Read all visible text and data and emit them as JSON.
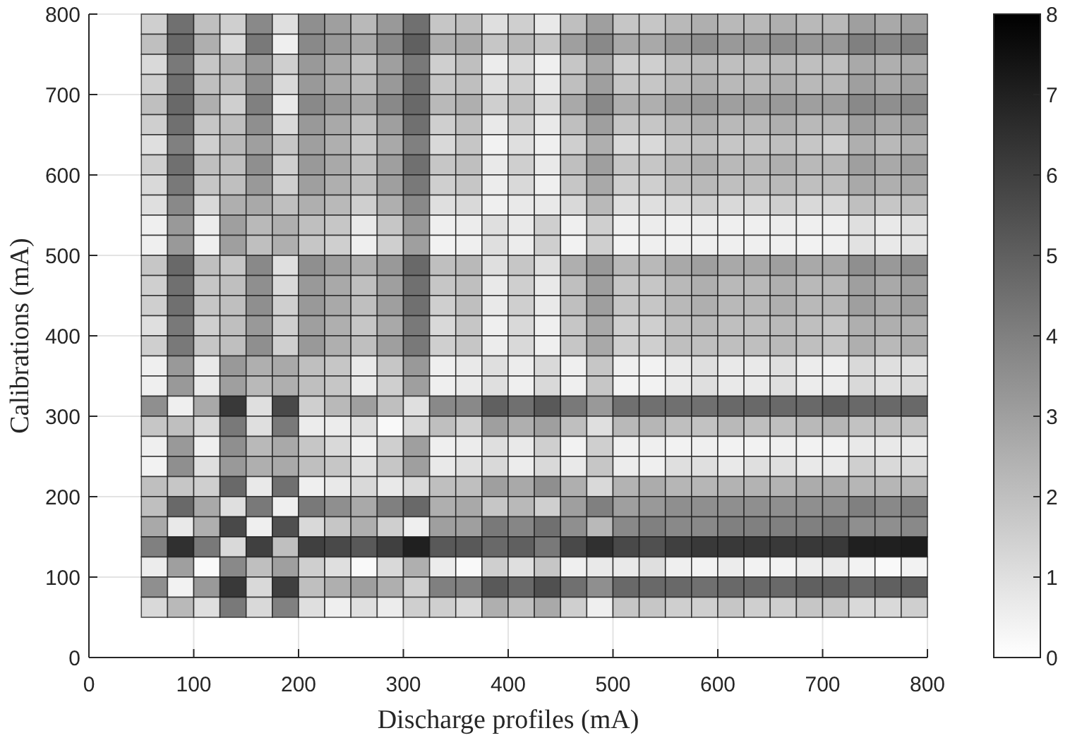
{
  "chart_data": {
    "type": "heatmap",
    "xlabel": "Discharge profiles (mA)",
    "ylabel": "Calibrations (mA)",
    "x": [
      62.5,
      87.5,
      112.5,
      137.5,
      162.5,
      187.5,
      212.5,
      237.5,
      262.5,
      287.5,
      312.5,
      337.5,
      362.5,
      387.5,
      412.5,
      437.5,
      462.5,
      487.5,
      512.5,
      537.5,
      562.5,
      587.5,
      612.5,
      637.5,
      662.5,
      687.5,
      712.5,
      737.5,
      762.5,
      787.5
    ],
    "y": [
      787.5,
      762.5,
      737.5,
      712.5,
      687.5,
      662.5,
      637.5,
      612.5,
      587.5,
      562.5,
      537.5,
      512.5,
      487.5,
      462.5,
      437.5,
      412.5,
      387.5,
      362.5,
      337.5,
      312.5,
      287.5,
      262.5,
      237.5,
      212.5,
      187.5,
      162.5,
      137.5,
      112.5,
      87.5,
      62.5
    ],
    "cells": [
      [
        1.5,
        4.5,
        2,
        1.5,
        3.7,
        1,
        3.5,
        3,
        2.2,
        3.2,
        4.5,
        1.8,
        2,
        1,
        1.5,
        0.7,
        2,
        3,
        1.8,
        1.8,
        2.2,
        2.5,
        2.2,
        2.2,
        2.5,
        2.2,
        2.2,
        3,
        2.7,
        3
      ],
      [
        2,
        4.7,
        2.5,
        1.2,
        4.2,
        0.5,
        3.7,
        3.2,
        2.7,
        3.7,
        5,
        2.5,
        2.7,
        1.8,
        2.2,
        1.8,
        3,
        3.7,
        2.7,
        2.7,
        3.2,
        3.5,
        3.2,
        3.2,
        3.5,
        3.2,
        3.2,
        4,
        3.7,
        4
      ],
      [
        1.2,
        4.2,
        1.8,
        2.2,
        3.2,
        1.5,
        3.2,
        2.7,
        2,
        3,
        4.2,
        1.5,
        2,
        0.6,
        1.2,
        0.5,
        1.8,
        2.7,
        1.5,
        1.5,
        2,
        2.2,
        2,
        2,
        2.2,
        2,
        2,
        2.7,
        2.5,
        2.7
      ],
      [
        1.5,
        4.5,
        2,
        2,
        3.5,
        1.2,
        3.2,
        2.7,
        2.2,
        3.2,
        4.5,
        1.8,
        2,
        1,
        1.5,
        0.7,
        2,
        3,
        1.8,
        1.8,
        2.2,
        2.5,
        2.2,
        2.2,
        2.5,
        2.2,
        2.2,
        3,
        2.7,
        3
      ],
      [
        2,
        4.7,
        2.5,
        1.5,
        4,
        0.7,
        3.7,
        3.2,
        2.7,
        3.7,
        4.7,
        2.2,
        2.5,
        1.5,
        2,
        1.2,
        2.7,
        3.7,
        2.5,
        2.5,
        3,
        3.2,
        3,
        3,
        3.2,
        3,
        3,
        3.7,
        3.5,
        3.7
      ],
      [
        1.5,
        4.5,
        1.8,
        2,
        3.5,
        1.2,
        3.2,
        2.7,
        2,
        3,
        4.5,
        1.5,
        2,
        0.7,
        1.5,
        0.7,
        2,
        3,
        1.8,
        1.8,
        2.2,
        2.5,
        2.2,
        2.2,
        2.5,
        2.2,
        2.2,
        3,
        2.7,
        3
      ],
      [
        1,
        4,
        1.5,
        2.2,
        3,
        1.8,
        3,
        2.5,
        1.8,
        2.7,
        4,
        1.2,
        1.8,
        0.4,
        1,
        0.5,
        1.5,
        2.5,
        1.2,
        1.2,
        1.8,
        2,
        1.8,
        1.8,
        2,
        1.8,
        1.5,
        2.5,
        2.2,
        2.5
      ],
      [
        1.5,
        4.5,
        2,
        2,
        3.5,
        1.5,
        3.2,
        2.7,
        2,
        3,
        4.5,
        1.8,
        2,
        0.7,
        1.5,
        0.7,
        2,
        3,
        1.8,
        1.8,
        2.2,
        2.5,
        2.2,
        2.2,
        2.5,
        2.2,
        2.2,
        3,
        2.7,
        3
      ],
      [
        1.2,
        4.2,
        1.8,
        2,
        3.2,
        1.5,
        3,
        2.5,
        2,
        3,
        4.2,
        1.5,
        1.8,
        0.6,
        1.2,
        0.5,
        1.8,
        2.7,
        1.5,
        1.5,
        2,
        2.2,
        2,
        2,
        2.2,
        2,
        2,
        2.7,
        2.5,
        2.7
      ],
      [
        1,
        3.7,
        1.2,
        2.5,
        2.7,
        2,
        2.5,
        2.2,
        1.5,
        2.5,
        3.7,
        1,
        1.2,
        0.5,
        0.7,
        0.7,
        1.2,
        2.2,
        1,
        1,
        1.2,
        1.5,
        1.2,
        1.2,
        1.5,
        1.2,
        1.2,
        2,
        1.8,
        2
      ],
      [
        0.5,
        3.2,
        0.6,
        3,
        2.2,
        2.5,
        2,
        1.8,
        0.7,
        1.8,
        3.2,
        0.5,
        0.6,
        1,
        0.7,
        1.5,
        0.5,
        1.5,
        0.5,
        0.6,
        0.5,
        0.6,
        0.5,
        0.5,
        0.6,
        0.5,
        0.5,
        1,
        0.7,
        1
      ],
      [
        0.5,
        3.2,
        0.5,
        3,
        2,
        2.5,
        1.8,
        1.5,
        0.5,
        1.5,
        3,
        0.4,
        0.5,
        1,
        0.6,
        1.5,
        0.4,
        1.5,
        0.4,
        0.5,
        0.5,
        0.5,
        0.5,
        0.5,
        0.5,
        0.4,
        0.5,
        0.9,
        0.7,
        0.9
      ],
      [
        1.8,
        4.7,
        2,
        1.8,
        3.7,
        1,
        3.5,
        3,
        2.5,
        3.2,
        4.7,
        2,
        2.2,
        1,
        1.8,
        1,
        2.5,
        3.2,
        2.2,
        2.2,
        2.7,
        3,
        2.7,
        2.7,
        3,
        2.7,
        2.7,
        3.5,
        3.2,
        3.5
      ],
      [
        1.5,
        4.5,
        1.8,
        2,
        3.5,
        1.2,
        3.2,
        2.7,
        2,
        3,
        4.5,
        1.8,
        2,
        0.7,
        1.5,
        0.7,
        2,
        3,
        1.8,
        1.8,
        2.2,
        2.5,
        2.2,
        2.2,
        2.5,
        2.2,
        2.2,
        3,
        2.7,
        3
      ],
      [
        1.5,
        4.5,
        1.8,
        2,
        3.5,
        1.5,
        3.2,
        2.7,
        2,
        3,
        4.5,
        1.5,
        2,
        0.7,
        1.5,
        0.7,
        2,
        3,
        1.8,
        1.8,
        2.2,
        2.5,
        2.2,
        2.2,
        2.5,
        2.2,
        2.2,
        3,
        2.7,
        3
      ],
      [
        1,
        4.2,
        1.5,
        2,
        3.2,
        1.5,
        3,
        2.5,
        1.8,
        2.7,
        4.2,
        1.2,
        1.8,
        0.5,
        1.2,
        0.5,
        1.8,
        2.7,
        1.5,
        1.5,
        2,
        2.2,
        2,
        2,
        2.2,
        2,
        1.8,
        2.5,
        2.5,
        2.5
      ],
      [
        1.5,
        4.2,
        1.8,
        2,
        3.5,
        1.5,
        3.2,
        2.5,
        2,
        3,
        4.2,
        1.5,
        1.8,
        0.6,
        1.2,
        0.5,
        1.8,
        2.7,
        1.5,
        1.5,
        2,
        2,
        2,
        2,
        2.2,
        2,
        1.8,
        2.5,
        2.2,
        2.5
      ],
      [
        0.5,
        3.2,
        0.7,
        3.2,
        2.5,
        2.7,
        2,
        1.8,
        0.7,
        1.8,
        3.2,
        0.5,
        0.7,
        1,
        0.6,
        1.2,
        0.5,
        1.8,
        0.5,
        0.4,
        0.7,
        1,
        0.7,
        0.7,
        1,
        0.6,
        0.5,
        1.2,
        1,
        1
      ],
      [
        0.5,
        3.2,
        0.7,
        3,
        2.2,
        2.5,
        2,
        1.8,
        0.7,
        1.5,
        3,
        0.5,
        0.7,
        1,
        0.5,
        1.2,
        0.5,
        1.8,
        0.4,
        0.4,
        0.7,
        1,
        0.7,
        0.7,
        1,
        0.6,
        0.6,
        1.2,
        1,
        1.2
      ],
      [
        3.5,
        0.5,
        2.7,
        6.2,
        1,
        5.7,
        1.5,
        2.2,
        3,
        2,
        1,
        3.7,
        3.7,
        5,
        4.5,
        5.2,
        4.2,
        3.2,
        4.5,
        4.5,
        4.5,
        4.5,
        4.7,
        4.7,
        4.7,
        4.7,
        5,
        4.7,
        4.7,
        4.7
      ],
      [
        1.8,
        2,
        1.2,
        4.2,
        1,
        4.2,
        0.6,
        0.6,
        1,
        0.2,
        1.2,
        2,
        1.5,
        3,
        2.5,
        3,
        2,
        1,
        2.2,
        2.3,
        2,
        1.9,
        2.2,
        2,
        2,
        2.2,
        2.3,
        1.9,
        1.9,
        1.9
      ],
      [
        0.5,
        3.2,
        0.5,
        3.5,
        2.2,
        2.7,
        1.8,
        1.2,
        0.5,
        1.5,
        3,
        0.5,
        0.6,
        1,
        0.7,
        1.5,
        0.4,
        1.5,
        0.5,
        0.5,
        0.4,
        0.5,
        0.4,
        0.4,
        0.5,
        0.4,
        0.4,
        0.7,
        0.7,
        0.7
      ],
      [
        0.4,
        3.5,
        1,
        3.2,
        2.5,
        2.7,
        2,
        1.8,
        1,
        1.8,
        3,
        0.7,
        1,
        1.2,
        0.6,
        1.2,
        0.7,
        1.8,
        0.6,
        0.5,
        1,
        1,
        0.7,
        1,
        1,
        0.7,
        0.7,
        1.5,
        1.2,
        1.2
      ],
      [
        2,
        1.8,
        1.5,
        4.7,
        0.7,
        4.5,
        0.5,
        0.7,
        1.2,
        0.7,
        1.2,
        2,
        2,
        3,
        2.7,
        3.5,
        2.5,
        1.2,
        2.4,
        2.6,
        2.3,
        2.3,
        2.4,
        2.4,
        2.4,
        2.6,
        2.6,
        2.3,
        2.3,
        2.3
      ],
      [
        2,
        4.7,
        2.7,
        1,
        4.2,
        0.5,
        4.2,
        3.5,
        2.7,
        4,
        4.7,
        2.5,
        2.7,
        1.8,
        2.2,
        1.5,
        3,
        4,
        3,
        3.2,
        3.5,
        3.5,
        3.5,
        3.5,
        3.5,
        3.5,
        3.5,
        4,
        3.7,
        4
      ],
      [
        2.7,
        0.7,
        2.5,
        5.7,
        0.5,
        5.5,
        1.2,
        1.8,
        2.5,
        1.5,
        0.5,
        3,
        3,
        4.2,
        3.8,
        4.5,
        3.5,
        2.2,
        3.7,
        4,
        3.7,
        3.7,
        4,
        4,
        4,
        4,
        4.2,
        3.5,
        3.5,
        3.7
      ],
      [
        4,
        6.5,
        4.2,
        1.2,
        6,
        2,
        6,
        5.7,
        5.2,
        6,
        7,
        5.2,
        5.2,
        4.7,
        5,
        4.2,
        5.7,
        6.5,
        5.7,
        5.5,
        6,
        6.2,
        6.2,
        6.2,
        6.2,
        6.2,
        6.2,
        7,
        7,
        7.1
      ],
      [
        0.6,
        3,
        0.2,
        3.7,
        2,
        3,
        1.5,
        1,
        0.2,
        1.2,
        2.5,
        0.6,
        0.2,
        1.5,
        1,
        1.8,
        0.5,
        0.7,
        0.7,
        1,
        0.5,
        0.4,
        0.6,
        0.4,
        0.4,
        0.6,
        0.7,
        0.4,
        0.2,
        0.4
      ],
      [
        3.5,
        0.4,
        3.2,
        6.2,
        1.2,
        6,
        2,
        2.5,
        3,
        2.5,
        1.5,
        4,
        4,
        5.2,
        4.7,
        5.5,
        4.5,
        3.5,
        4.7,
        4.7,
        4.7,
        4.5,
        4.7,
        4.7,
        4.7,
        5,
        5,
        4.7,
        5,
        5
      ],
      [
        1.2,
        2.2,
        1,
        4.2,
        1.2,
        4,
        1,
        0.5,
        1,
        0.6,
        1.5,
        1.5,
        1.2,
        2.5,
        2,
        2.7,
        1.5,
        0.5,
        1.8,
        1.8,
        1.5,
        1.5,
        1.8,
        1.5,
        1.5,
        1.8,
        1.8,
        1.2,
        1.2,
        1.5
      ]
    ],
    "xlim": [
      0,
      800
    ],
    "xticks": [
      0,
      100,
      200,
      300,
      400,
      500,
      600,
      700,
      800
    ],
    "ylim": [
      0,
      800
    ],
    "yticks": [
      0,
      100,
      200,
      300,
      400,
      500,
      600,
      700,
      800
    ],
    "clim": [
      0,
      8
    ],
    "cticks": [
      0,
      1,
      2,
      3,
      4,
      5,
      6,
      7,
      8
    ],
    "grid": true
  }
}
